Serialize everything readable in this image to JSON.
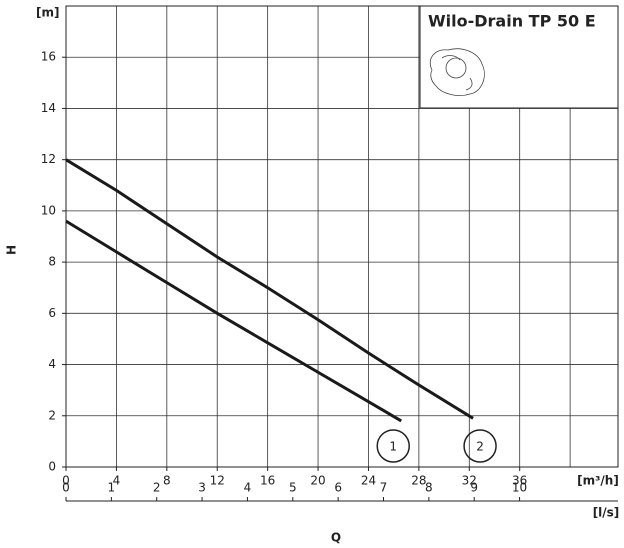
{
  "chart_data": {
    "type": "line",
    "title": "Wilo-Drain TP 50 E",
    "x_label": "Q",
    "y_label": "H",
    "y_unit": "[m]",
    "x_unit": "[m³/h]",
    "x2_unit": "[l/s]",
    "xlim": [
      0,
      43.8
    ],
    "ylim": [
      0,
      18
    ],
    "xticks": [
      0,
      4,
      8,
      12,
      16,
      20,
      24,
      28,
      32,
      36
    ],
    "xgrid": [
      0,
      4,
      8,
      12,
      16,
      20,
      24,
      28,
      32,
      36,
      40
    ],
    "yticks": [
      0,
      2,
      4,
      6,
      8,
      10,
      12,
      14,
      16
    ],
    "ygrid": [
      0,
      2,
      4,
      6,
      8,
      10,
      12,
      14,
      16,
      18
    ],
    "x2lim": [
      0,
      12.17
    ],
    "x2ticks": [
      0,
      1,
      2,
      3,
      4,
      5,
      6,
      7,
      8,
      9,
      10
    ],
    "grid": true,
    "series": [
      {
        "name": "1",
        "color": "#1a1a1a",
        "x": [
          0,
          4,
          8,
          12,
          16,
          20,
          24,
          26.6
        ],
        "values": [
          9.6,
          8.4,
          7.2,
          6.0,
          4.85,
          3.7,
          2.55,
          1.8
        ]
      },
      {
        "name": "2",
        "color": "#1a1a1a",
        "x": [
          0,
          4,
          8,
          12,
          16,
          20,
          24,
          28,
          32.3
        ],
        "values": [
          12.0,
          10.8,
          9.5,
          8.2,
          7.0,
          5.75,
          4.45,
          3.2,
          1.9
        ]
      }
    ]
  }
}
